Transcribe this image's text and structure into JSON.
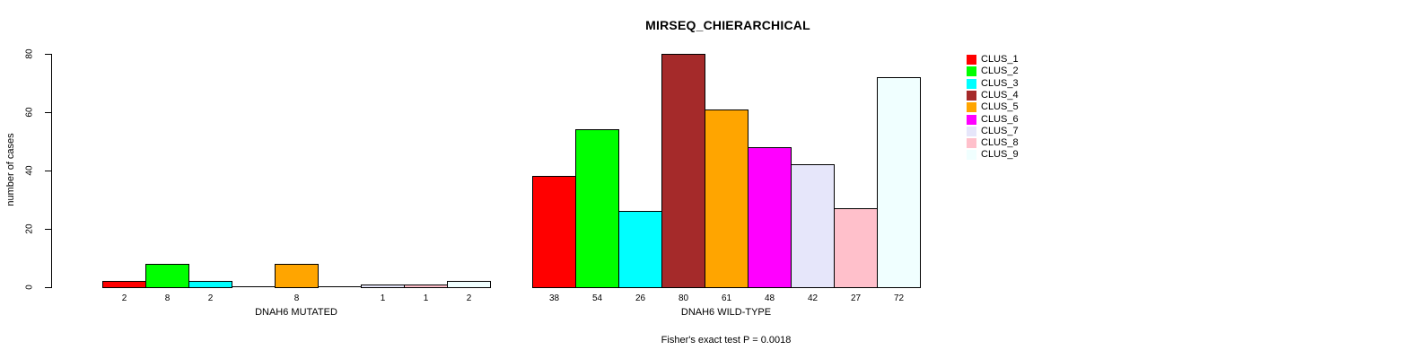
{
  "title": "MIRSEQ_CHIERARCHICAL",
  "y_axis": {
    "label": "number of cases",
    "ticks": [
      0,
      20,
      40,
      60,
      80
    ]
  },
  "annotation": "Fisher's exact test P = 0.0018",
  "chart_data": {
    "type": "bar",
    "title": "MIRSEQ_CHIERARCHICAL",
    "xlabel": "",
    "ylabel": "number of cases",
    "ylim": [
      0,
      80
    ],
    "yticks": [
      0,
      20,
      40,
      60,
      80
    ],
    "grid": false,
    "legend_position": "right",
    "annotation": "Fisher's exact test P = 0.0018",
    "bar_value_labels_shown": true,
    "categories": [
      "DNAH6 MUTATED",
      "DNAH6 WILD-TYPE"
    ],
    "series": [
      {
        "name": "CLUS_1",
        "color": "#FF0000",
        "values": [
          2,
          38
        ]
      },
      {
        "name": "CLUS_2",
        "color": "#00FF00",
        "values": [
          8,
          54
        ]
      },
      {
        "name": "CLUS_3",
        "color": "#00FFFF",
        "values": [
          2,
          26
        ]
      },
      {
        "name": "CLUS_4",
        "color": "#A52A2A",
        "values": [
          0,
          80
        ]
      },
      {
        "name": "CLUS_5",
        "color": "#FFA500",
        "values": [
          8,
          61
        ]
      },
      {
        "name": "CLUS_6",
        "color": "#FF00FF",
        "values": [
          0,
          48
        ]
      },
      {
        "name": "CLUS_7",
        "color": "#E6E6FA",
        "values": [
          1,
          42
        ]
      },
      {
        "name": "CLUS_8",
        "color": "#FFC0CB",
        "values": [
          1,
          27
        ]
      },
      {
        "name": "CLUS_9",
        "color": "#F0FFFF",
        "values": [
          2,
          72
        ]
      }
    ]
  }
}
